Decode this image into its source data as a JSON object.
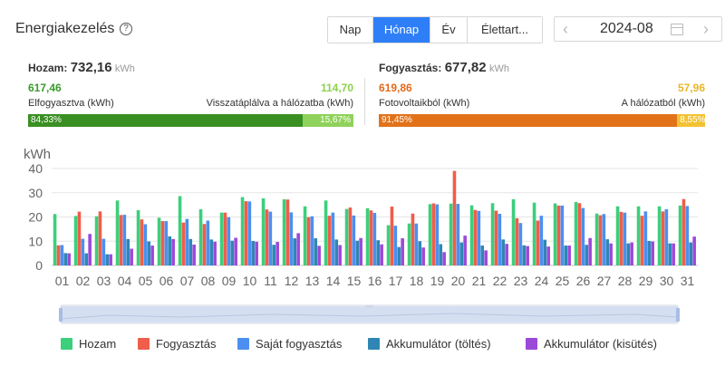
{
  "header": {
    "title": "Energiakezelés",
    "help_icon": "?",
    "tabs": [
      "Nap",
      "Hónap",
      "Év",
      "Élettart..."
    ],
    "active_tab": "Hónap",
    "date": "2024-08",
    "prev_icon": "‹",
    "next_icon": "›"
  },
  "summary": {
    "yield": {
      "label": "Hozam:",
      "value": "732,16",
      "unit": "kWh",
      "left_value": "617,46",
      "left_label": "Elfogyasztva (kWh)",
      "right_value": "114,70",
      "right_label": "Visszatáplálva a hálózatba (kWh)",
      "left_pct": "84,33%",
      "right_pct": "15,67%",
      "left_color": "#3a8f22",
      "right_color": "#8fd25b"
    },
    "consumption": {
      "label": "Fogyasztás:",
      "value": "677,82",
      "unit": "kWh",
      "left_value": "619,86",
      "left_label": "Fotovoltaikból (kWh)",
      "right_value": "57,96",
      "right_label": "A hálózatból (kWh)",
      "left_pct": "91,45%",
      "right_pct": "8,55%",
      "left_color": "#e2721a",
      "right_color": "#f2c233"
    }
  },
  "chart_data": {
    "type": "bar",
    "ylabel": "kWh",
    "ylim": [
      0,
      40
    ],
    "yticks": [
      0,
      10,
      20,
      30,
      40
    ],
    "grid": true,
    "legend_position": "bottom",
    "categories": [
      "01",
      "02",
      "03",
      "04",
      "05",
      "06",
      "07",
      "08",
      "09",
      "10",
      "11",
      "12",
      "13",
      "14",
      "15",
      "16",
      "17",
      "18",
      "19",
      "20",
      "21",
      "22",
      "23",
      "24",
      "25",
      "26",
      "27",
      "28",
      "29",
      "30",
      "31"
    ],
    "series": [
      {
        "name": "Hozam",
        "color": "#3ccf7c",
        "values": [
          21.2,
          20.4,
          20.3,
          26.8,
          22.8,
          19.7,
          28.6,
          23.2,
          21.8,
          28.2,
          27.7,
          27.3,
          24.4,
          26.8,
          23.3,
          23.6,
          16.6,
          17.3,
          25.3,
          25.5,
          24.8,
          25.7,
          27.3,
          25.9,
          25.6,
          26.2,
          21.4,
          24.4,
          24.4,
          24.4,
          24.7
        ]
      },
      {
        "name": "Fogyasztás",
        "color": "#ef5e4a",
        "values": [
          8.3,
          22.2,
          22.3,
          20.8,
          19.0,
          18.3,
          17.7,
          17.1,
          21.8,
          26.5,
          23.1,
          27.2,
          19.9,
          20.5,
          23.9,
          22.7,
          24.3,
          21.4,
          25.6,
          39.0,
          22.9,
          22.6,
          19.5,
          18.5,
          24.7,
          25.7,
          20.7,
          22.1,
          20.5,
          22.3,
          27.4
        ]
      },
      {
        "name": "Saját fogyasztás",
        "color": "#4c8ff0",
        "values": [
          8.4,
          11.0,
          11.0,
          20.9,
          17.0,
          18.3,
          19.2,
          18.5,
          19.9,
          26.4,
          22.2,
          21.9,
          20.3,
          21.8,
          20.6,
          21.7,
          16.4,
          17.3,
          25.2,
          25.4,
          22.5,
          21.3,
          17.5,
          20.5,
          24.7,
          23.7,
          21.2,
          21.8,
          22.3,
          23.2,
          24.5
        ]
      },
      {
        "name": "Akkumulátor (töltés)",
        "color": "#2f86b5",
        "values": [
          5.1,
          5.0,
          4.6,
          10.9,
          9.9,
          12.0,
          10.9,
          10.7,
          10.2,
          10.1,
          8.5,
          11.2,
          11.2,
          10.7,
          10.2,
          10.4,
          7.6,
          10.0,
          8.8,
          9.5,
          8.2,
          10.7,
          8.3,
          10.6,
          8.2,
          8.5,
          10.8,
          9.1,
          10.1,
          9.1,
          9.5
        ]
      },
      {
        "name": "Akkumulátor (kisütés)",
        "color": "#9b49d9",
        "values": [
          5.0,
          13.0,
          4.6,
          6.9,
          8.2,
          10.9,
          8.6,
          9.8,
          11.4,
          9.8,
          9.7,
          13.3,
          8.1,
          8.4,
          11.3,
          8.7,
          11.2,
          7.4,
          5.5,
          12.3,
          6.2,
          8.9,
          8.0,
          7.8,
          8.2,
          11.3,
          9.1,
          9.5,
          9.9,
          9.1,
          11.9
        ]
      }
    ]
  },
  "zoom_slider": {
    "start_pct": 0,
    "end_pct": 100
  }
}
